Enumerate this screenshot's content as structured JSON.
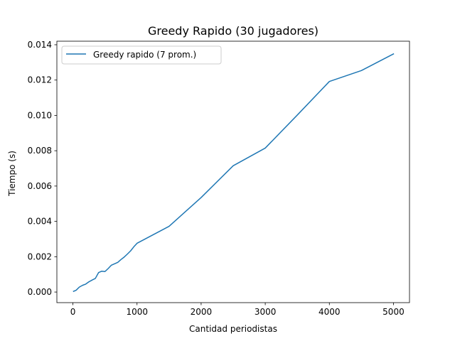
{
  "chart_data": {
    "type": "line",
    "title": "Greedy Rapido (30 jugadores)",
    "xlabel": "Cantidad periodistas",
    "ylabel": "Tiempo (s)",
    "xlim": [
      -250,
      5250
    ],
    "ylim": [
      -0.0006,
      0.0142
    ],
    "xticks": [
      0,
      1000,
      2000,
      3000,
      4000,
      5000
    ],
    "xtick_labels": [
      "0",
      "1000",
      "2000",
      "3000",
      "4000",
      "5000"
    ],
    "yticks": [
      0.0,
      0.002,
      0.004,
      0.006,
      0.008,
      0.01,
      0.012,
      0.014
    ],
    "ytick_labels": [
      "0.000",
      "0.002",
      "0.004",
      "0.006",
      "0.008",
      "0.010",
      "0.012",
      "0.014"
    ],
    "grid": false,
    "legend_position": "upper-left",
    "series": [
      {
        "name": "Greedy rapido  (7 prom.)",
        "color": "#1f77b4",
        "x": [
          10,
          50,
          100,
          150,
          200,
          250,
          300,
          350,
          400,
          450,
          500,
          550,
          600,
          650,
          700,
          750,
          800,
          850,
          900,
          950,
          1000,
          1500,
          2000,
          2500,
          3000,
          3500,
          4000,
          4500,
          5000
        ],
        "y": [
          4e-05,
          0.0001,
          0.00028,
          0.00038,
          0.00045,
          0.00058,
          0.00068,
          0.00077,
          0.0011,
          0.00118,
          0.00116,
          0.00133,
          0.00152,
          0.0016,
          0.00168,
          0.00184,
          0.00198,
          0.00215,
          0.00233,
          0.00256,
          0.00276,
          0.00372,
          0.00535,
          0.00715,
          0.00815,
          0.01002,
          0.01192,
          0.01254,
          0.01348
        ]
      }
    ]
  }
}
